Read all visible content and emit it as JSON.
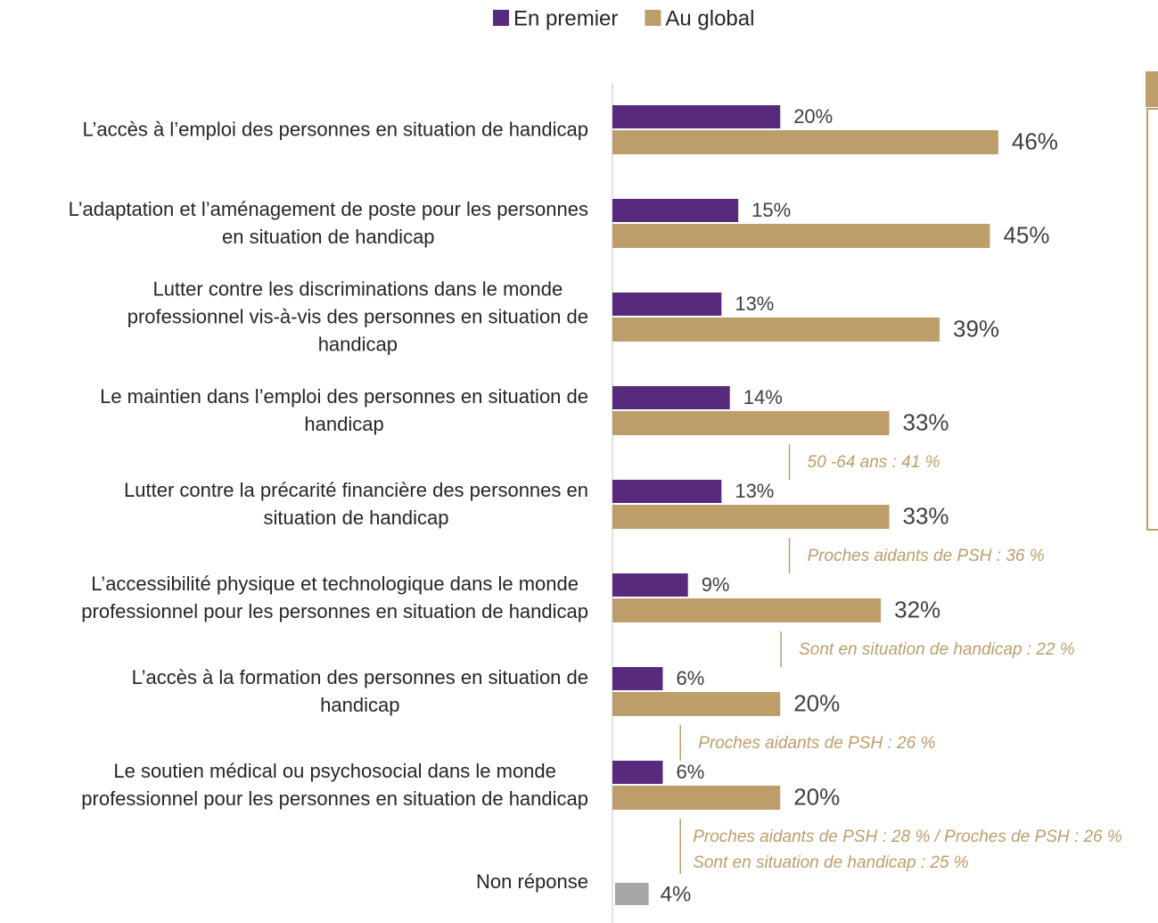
{
  "chart_data": {
    "type": "bar",
    "orientation": "horizontal",
    "categories": [
      "L’accès à l’emploi des personnes en situation de handicap",
      "L’adaptation et l’aménagement de poste pour les personnes\nen situation de handicap",
      "Lutter contre les discriminations dans le monde\nprofessionnel vis-à-vis des personnes en situation de\nhandicap",
      "Le maintien dans l’emploi des personnes en situation de\nhandicap",
      "Lutter contre la précarité financière des personnes en\nsituation de handicap",
      "L’accessibilité physique et technologique dans le monde\nprofessionnel pour les personnes en situation de handicap",
      "L’accès à la formation des personnes en situation de\nhandicap",
      "Le soutien médical ou psychosocial dans le monde\nprofessionnel pour les personnes en situation de handicap"
    ],
    "series": [
      {
        "name": "En premier",
        "color": "#582a7e",
        "values": [
          20,
          15,
          13,
          14,
          13,
          9,
          6,
          6
        ],
        "value_labels": [
          "20%",
          "15%",
          "13%",
          "14%",
          "13%",
          "9%",
          "6%",
          "6%"
        ]
      },
      {
        "name": "Au global",
        "color": "#bd9e6b",
        "values": [
          46,
          45,
          39,
          33,
          33,
          32,
          20,
          20
        ],
        "value_labels": [
          "46%",
          "45%",
          "39%",
          "33%",
          "33%",
          "32%",
          "20%",
          "20%"
        ]
      }
    ],
    "notes": [
      null,
      null,
      null,
      [
        "50 -64 ans : 41 %"
      ],
      [
        "Proches aidants de PSH : 36 %"
      ],
      [
        "Sont en situation de handicap : 22 %"
      ],
      [
        "Proches aidants de PSH : 26 %"
      ],
      [
        "Proches aidants de PSH : 28 % / Proches de PSH : 26 %",
        "Sont en situation de handicap : 25 %"
      ]
    ],
    "non_response": {
      "label": "Non réponse",
      "value": 4,
      "value_label": "4%",
      "color": "#a6a6a6"
    },
    "xlim": [
      0,
      50
    ]
  }
}
